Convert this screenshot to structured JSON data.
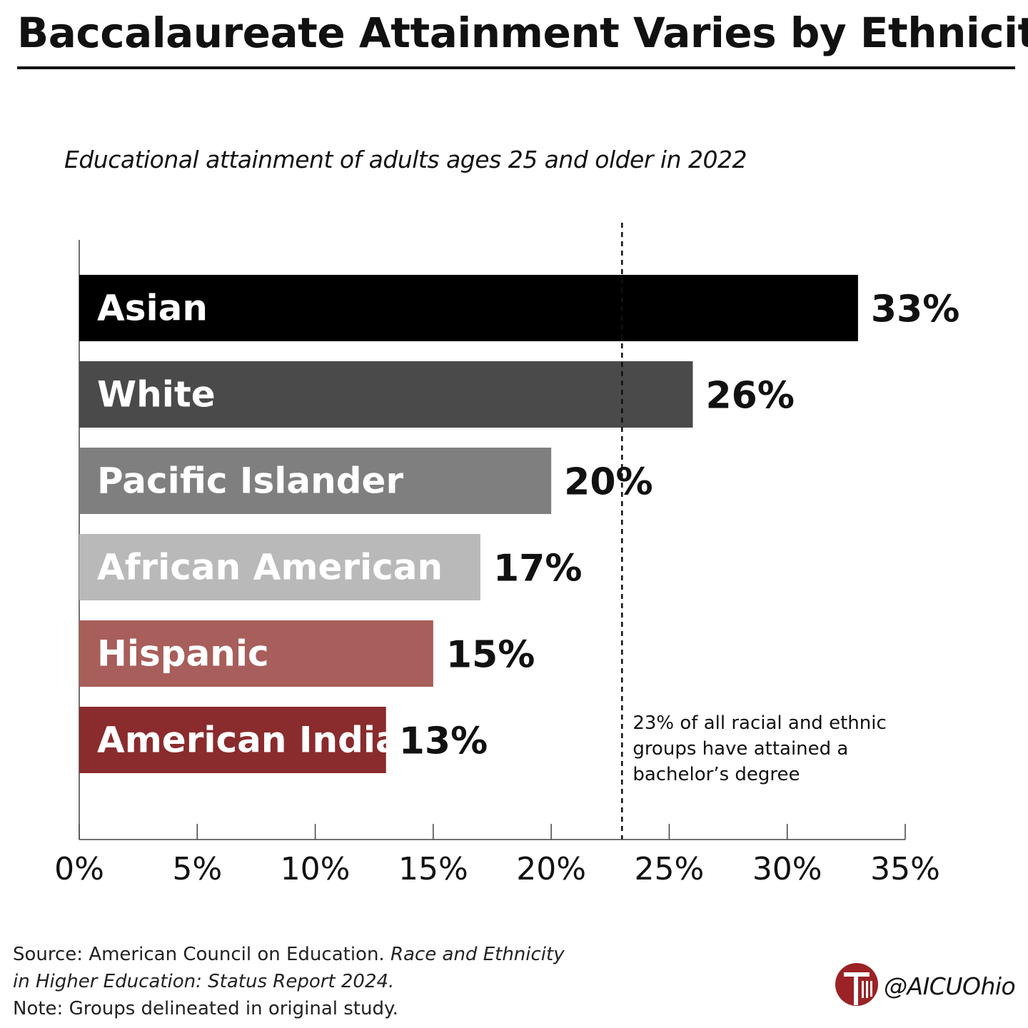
{
  "title": "Baccalaureate Attainment Varies by Ethnicity",
  "subtitle": "Educational attainment of adults ages 25 and older in 2022",
  "chart_data": {
    "type": "bar",
    "orientation": "horizontal",
    "categories": [
      "Asian",
      "White",
      "Pacific Islander",
      "African American",
      "Hispanic",
      "American Indian"
    ],
    "values": [
      33,
      26,
      20,
      17,
      15,
      13
    ],
    "value_labels": [
      "33%",
      "26%",
      "20%",
      "17%",
      "15%",
      "13%"
    ],
    "bar_colors": [
      "#000000",
      "#4a4a4a",
      "#7f7f7f",
      "#b9b9b9",
      "#a85e5b",
      "#8a2b2d"
    ],
    "xlim": [
      0,
      35
    ],
    "xticks": [
      0,
      5,
      10,
      15,
      20,
      25,
      30,
      35
    ],
    "xtick_labels": [
      "0%",
      "5%",
      "10%",
      "15%",
      "20%",
      "25%",
      "30%",
      "35%"
    ],
    "grid": false,
    "reference_line": {
      "value": 23,
      "style": "dashed",
      "annotation": [
        "23% of all racial and ethnic",
        "groups have attained a",
        "bachelor’s degree"
      ]
    }
  },
  "footer": {
    "source_prefix": "Source: American Council on Education. ",
    "source_title_1": "Race and Ethnicity",
    "source_title_2": "in Higher Education: Status Report 2024",
    "source_title_end": ".",
    "note": "Note: Groups delineated in original study.",
    "handle": "@AICUOhio",
    "logo_color": "#9b2226"
  }
}
